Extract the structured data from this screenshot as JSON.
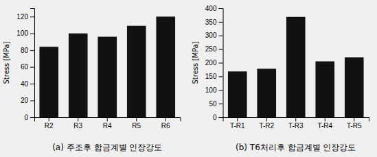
{
  "chart_data": [
    {
      "type": "bar",
      "title": "(a) 주조후 합금계별 인장강도",
      "categories": [
        "R2",
        "R3",
        "R4",
        "R5",
        "R6"
      ],
      "values": [
        84,
        100,
        96,
        109,
        120
      ],
      "color": "#111111",
      "ylabel": "Stress [MPa]",
      "ylim": [
        0,
        130
      ],
      "yticks": [
        0,
        20,
        40,
        60,
        80,
        100,
        120
      ],
      "grid": false
    },
    {
      "type": "bar",
      "title": "(b) T6처리후 합금계별 인장강도",
      "categories": [
        "T-R1",
        "T-R2",
        "T-R3",
        "T-R4",
        "T-R5"
      ],
      "values": [
        168,
        178,
        368,
        205,
        220
      ],
      "color": "#111111",
      "ylabel": "Stress [MPa]",
      "ylim": [
        0,
        400
      ],
      "yticks": [
        0,
        50,
        100,
        150,
        200,
        250,
        300,
        350,
        400
      ],
      "grid": false
    }
  ]
}
